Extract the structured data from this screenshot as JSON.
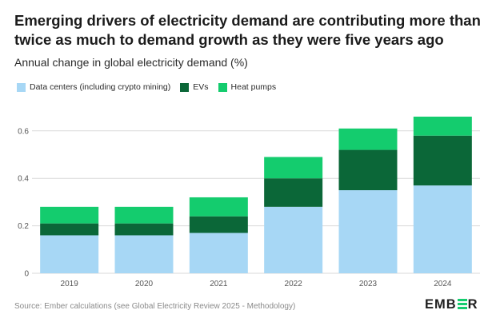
{
  "title": "Emerging drivers of electricity demand are contributing more than twice as much to demand growth as they were five years ago",
  "subtitle": "Annual change in global electricity demand (%)",
  "source": "Source: Ember calculations (see Global Electricity Review 2025 - Methodology)",
  "logo": {
    "pre": "EMB",
    "post": "R",
    "icon": "ember-e-icon"
  },
  "colors": {
    "data_centers": "#a7d7f5",
    "evs": "#0b6738",
    "heat_pumps": "#14cc6e",
    "grid": "#d9d9d9",
    "axis_text": "#555555"
  },
  "chart_data": {
    "type": "bar",
    "stacked": true,
    "categories": [
      "2019",
      "2020",
      "2021",
      "2022",
      "2023",
      "2024"
    ],
    "series": [
      {
        "name": "Data centers (including crypto mining)",
        "values": [
          0.16,
          0.16,
          0.17,
          0.28,
          0.35,
          0.37
        ]
      },
      {
        "name": "EVs",
        "values": [
          0.05,
          0.05,
          0.07,
          0.12,
          0.17,
          0.21
        ]
      },
      {
        "name": "Heat pumps",
        "values": [
          0.07,
          0.07,
          0.08,
          0.09,
          0.09,
          0.08
        ]
      }
    ],
    "yticks": [
      "0",
      "0.2",
      "0.4",
      "0.6"
    ],
    "ytick_values": [
      0,
      0.2,
      0.4,
      0.6
    ],
    "ylim": [
      0,
      0.65
    ],
    "grid": true,
    "legend_position": "top-left"
  }
}
